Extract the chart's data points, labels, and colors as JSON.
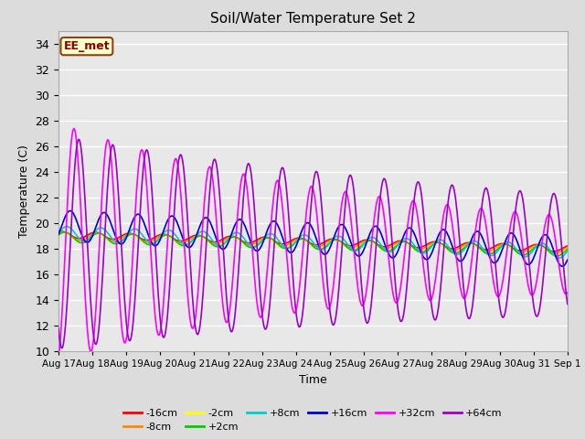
{
  "title": "Soil/Water Temperature Set 2",
  "xlabel": "Time",
  "ylabel": "Temperature (C)",
  "ylim": [
    10,
    35
  ],
  "yticks": [
    10,
    12,
    14,
    16,
    18,
    20,
    22,
    24,
    26,
    28,
    30,
    32,
    34
  ],
  "background_color": "#dcdcdc",
  "plot_bg_color": "#e8e8e8",
  "annotation_text": "EE_met",
  "annotation_bg": "#ffffcc",
  "annotation_border": "#8b4513",
  "annotation_text_color": "#8b0000",
  "series": [
    {
      "label": "-16cm",
      "color": "#ff0000"
    },
    {
      "label": "-8cm",
      "color": "#ff8800"
    },
    {
      "label": "-2cm",
      "color": "#ffff00"
    },
    {
      "label": "+2cm",
      "color": "#00cc00"
    },
    {
      "label": "+8cm",
      "color": "#00cccc"
    },
    {
      "label": "+16cm",
      "color": "#0000cc"
    },
    {
      "label": "+32cm",
      "color": "#ff00ff"
    },
    {
      "label": "+64cm",
      "color": "#9900cc"
    }
  ],
  "x_labels": [
    "Aug 17",
    "Aug 18",
    "Aug 19",
    "Aug 20",
    "Aug 21",
    "Aug 22",
    "Aug 23",
    "Aug 24",
    "Aug 25",
    "Aug 26",
    "Aug 27",
    "Aug 28",
    "Aug 29",
    "Aug 30",
    "Aug 31",
    "Sep 1"
  ],
  "grid_color": "#ffffff",
  "n_days": 15
}
